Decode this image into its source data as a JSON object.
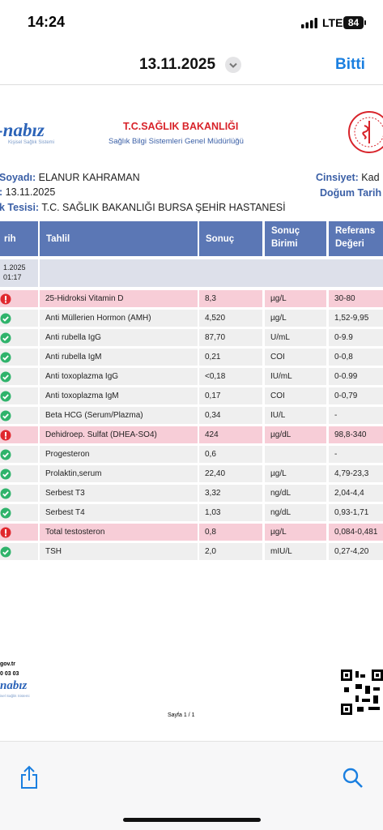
{
  "status_bar": {
    "time": "14:24",
    "network": "LTE",
    "battery": "84"
  },
  "nav": {
    "date": "13.11.2025",
    "done": "Bitti"
  },
  "document": {
    "logo": {
      "name": "-nabız",
      "tagline": "Kişisel Sağlık Sistemi"
    },
    "ministry": {
      "title": "T.C.SAĞLIK BAKANLIĞI",
      "subtitle": "Sağlık Bilgi Sistemleri Genel Müdürlüğü"
    },
    "patient": {
      "name_label": "Soyadı:",
      "name": "ELANUR KAHRAMAN",
      "gender_label": "Cinsiyet:",
      "gender": "Kad",
      "date_label": ":",
      "date": "13.11.2025",
      "birth_label": "Doğum Tarih",
      "facility_label": "k Tesisi:",
      "facility": "T.C. SAĞLIK BAKANLIĞI BURSA ŞEHİR HASTANESİ"
    },
    "table": {
      "headers": [
        "rih",
        "Tahlil",
        "Sonuç",
        "Sonuç Birimi",
        "Referans Değeri"
      ],
      "date_cell": [
        "1.2025",
        "01:17"
      ],
      "rows": [
        {
          "abnormal": true,
          "test": "25-Hidroksi Vitamin D",
          "result": "8,3",
          "unit": "µg/L",
          "reference": "30-80"
        },
        {
          "abnormal": false,
          "test": "Anti Müllerien Hormon (AMH)",
          "result": "4,520",
          "unit": "µg/L",
          "reference": "1,52-9,95"
        },
        {
          "abnormal": false,
          "test": "Anti rubella IgG",
          "result": "87,70",
          "unit": "U/mL",
          "reference": "0-9.9"
        },
        {
          "abnormal": false,
          "test": "Anti rubella IgM",
          "result": "0,21",
          "unit": "COI",
          "reference": "0-0,8"
        },
        {
          "abnormal": false,
          "test": "Anti toxoplazma IgG",
          "result": "<0,18",
          "unit": "IU/mL",
          "reference": "0-0.99"
        },
        {
          "abnormal": false,
          "test": "Anti toxoplazma IgM",
          "result": "0,17",
          "unit": "COI",
          "reference": "0-0,79"
        },
        {
          "abnormal": false,
          "test": "Beta HCG (Serum/Plazma)",
          "result": "0,34",
          "unit": "IU/L",
          "reference": "-"
        },
        {
          "abnormal": true,
          "test": "Dehidroep. Sulfat (DHEA-SO4)",
          "result": "424",
          "unit": "µg/dL",
          "reference": "98,8-340"
        },
        {
          "abnormal": false,
          "test": "Progesteron",
          "result": "0,6",
          "unit": null,
          "reference": "-"
        },
        {
          "abnormal": false,
          "test": "Prolaktin,serum",
          "result": "22,40",
          "unit": "µg/L",
          "reference": "4,79-23,3"
        },
        {
          "abnormal": false,
          "test": "Serbest T3",
          "result": "3,32",
          "unit": "ng/dL",
          "reference": "2,04-4,4"
        },
        {
          "abnormal": false,
          "test": "Serbest T4",
          "result": "1,03",
          "unit": "ng/dL",
          "reference": "0,93-1,71"
        },
        {
          "abnormal": true,
          "test": "Total testosteron",
          "result": "0,8",
          "unit": "µg/L",
          "reference": "0,084-0,481"
        },
        {
          "abnormal": false,
          "test": "TSH",
          "result": "2,0",
          "unit": "mIU/L",
          "reference": "0,27-4,20"
        }
      ]
    },
    "footer": {
      "site": "gov.tr",
      "phone": "0 03 03",
      "logo": "nabız",
      "logo_tagline": "isel Sağlık Sistemi",
      "page": "Sayfa 1 / 1"
    }
  }
}
